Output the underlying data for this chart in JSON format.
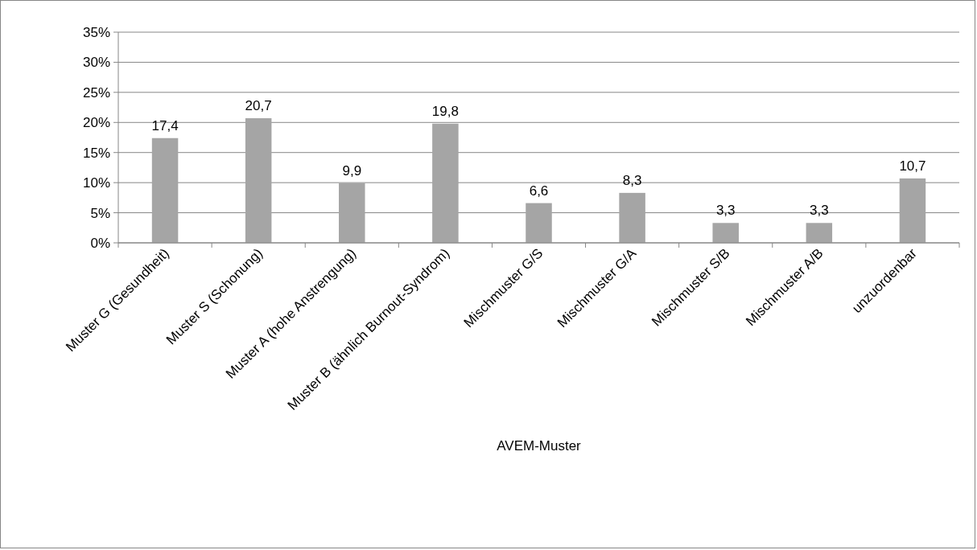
{
  "chart_data": {
    "type": "bar",
    "xlabel": "AVEM-Muster",
    "categories": [
      "Muster G (Gesundheit)",
      "Muster S (Schonung)",
      "Muster A (hohe Anstrengung)",
      "Muster B (ähnlich Burnout-Syndrom)",
      "Mischmuster G/S",
      "Mischmuster G/A",
      "Mischmuster S/B",
      "Mischmuster A/B",
      "unzuordenbar"
    ],
    "values": [
      17.4,
      20.7,
      9.9,
      19.8,
      6.6,
      8.3,
      3.3,
      3.3,
      10.7
    ],
    "value_labels": [
      "17,4",
      "20,7",
      "9,9",
      "19,8",
      "6,6",
      "8,3",
      "3,3",
      "3,3",
      "10,7"
    ],
    "color": "#a5a5a5",
    "ylim": [
      0,
      35
    ],
    "yticks": [
      {
        "value": 0,
        "label": "0%"
      },
      {
        "value": 5,
        "label": "5%"
      },
      {
        "value": 10,
        "label": "10%"
      },
      {
        "value": 15,
        "label": "15%"
      },
      {
        "value": 20,
        "label": "20%"
      },
      {
        "value": 25,
        "label": "25%"
      },
      {
        "value": 30,
        "label": "30%"
      },
      {
        "value": 35,
        "label": "35%"
      }
    ],
    "grid": "y"
  }
}
